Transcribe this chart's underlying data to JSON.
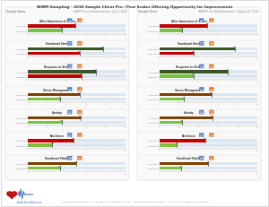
{
  "title": "WWM Sampling - 2018 Sample Client Pre / Post Scales Offering Opportunity for Improvement",
  "bg_color": "#ffffff",
  "left_panel": {
    "header_line1": "Sample Name",
    "header_line2": "WWM Stress Self-Assessment - July 3, 2018",
    "scales": [
      {
        "name": "Alloc Awareness of Stress",
        "label_pre": "Pre Score",
        "label_post": "Post Score",
        "badge_pre": "4.9",
        "badge_post": "3.5",
        "pre_val": 4.9,
        "post_val": 3.5,
        "max_val": 10,
        "bar_color_pre": "#c00000",
        "bar_color_post": "#7ac143",
        "tick_pre": 4.9,
        "tick_post": 3.5
      },
      {
        "name": "Emotional Stress",
        "label_pre": "Pre Score",
        "label_post": "Post Score",
        "badge_pre": "7.7",
        "badge_post": "5.3",
        "pre_val": 7.7,
        "post_val": 5.3,
        "max_val": 10,
        "bar_color_pre": "#375623",
        "bar_color_post": "#c00000",
        "tick_pre": 7.7,
        "tick_post": 5.3
      },
      {
        "name": "Response to Stress",
        "label_pre": "Pre Score",
        "label_post": "Post Score",
        "badge_pre": "7.0",
        "badge_post": "5.5",
        "pre_val": 7.0,
        "post_val": 5.5,
        "max_val": 10,
        "bar_color_pre": "#375623",
        "bar_color_post": "#c00000",
        "tick_pre": 7.0,
        "tick_post": 5.5
      },
      {
        "name": "Stress Management",
        "label_pre": "Pre Score",
        "label_post": "Post Score",
        "badge_pre": "5.3",
        "badge_post": "3.3",
        "pre_val": 5.3,
        "post_val": 3.3,
        "max_val": 10,
        "bar_color_pre": "#7b3f00",
        "bar_color_post": "#7ac143",
        "tick_pre": 5.3,
        "tick_post": 3.3
      },
      {
        "name": "Anxiety",
        "label_pre": "Pre Score",
        "label_post": "Post Score",
        "badge_pre": "5.4",
        "badge_post": "3.5",
        "pre_val": 5.4,
        "post_val": 3.5,
        "max_val": 10,
        "bar_color_pre": "#7b3f00",
        "bar_color_post": "#7ac143",
        "tick_pre": 5.4,
        "tick_post": 3.5
      },
      {
        "name": "Resilience",
        "label_pre": "Pre Score",
        "label_post": "Post Score",
        "badge_pre": "4.7",
        "badge_post": "2.5",
        "pre_val": 4.7,
        "post_val": 2.5,
        "max_val": 10,
        "bar_color_pre": "#c00000",
        "bar_color_post": "#7ac143",
        "tick_pre": 4.7,
        "tick_post": 2.5
      },
      {
        "name": "Emotional Vitality",
        "label_pre": "Pre Score",
        "label_post": "Post Score",
        "badge_pre": "5.0",
        "badge_post": "3.3",
        "pre_val": 5.0,
        "post_val": 3.3,
        "max_val": 10,
        "bar_color_pre": "#7b3f00",
        "bar_color_post": "#7ac143",
        "tick_pre": 5.0,
        "tick_post": 3.3
      }
    ]
  },
  "right_panel": {
    "header_line1": "Sample Client",
    "header_line2": "WWM Stress Well-Assessment - August 20, 2018",
    "scales": [
      {
        "name": "Alloc Awareness of Stress",
        "label_pre": "Pre Score",
        "label_post": "Post Score",
        "badge_pre": "4.9",
        "badge_post": "2.3",
        "pre_val": 4.9,
        "post_val": 2.3,
        "max_val": 10,
        "bar_color_pre": "#c00000",
        "bar_color_post": "#7ac143",
        "tick_pre": 4.9,
        "tick_post": 2.3
      },
      {
        "name": "Emotional Stress",
        "label_pre": "Pre Score",
        "label_post": "Post Score",
        "badge_pre": "7.7",
        "badge_post": "3.5",
        "pre_val": 7.7,
        "post_val": 3.5,
        "max_val": 10,
        "bar_color_pre": "#375623",
        "bar_color_post": "#c00000",
        "tick_pre": 7.7,
        "tick_post": 3.5
      },
      {
        "name": "Response to Stress",
        "label_pre": "Pre Score",
        "label_post": "Post Score",
        "badge_pre": "7.0",
        "badge_post": "3.5",
        "pre_val": 7.0,
        "post_val": 3.5,
        "max_val": 10,
        "bar_color_pre": "#375623",
        "bar_color_post": "#7ac143",
        "tick_pre": 7.0,
        "tick_post": 3.5
      },
      {
        "name": "Stress Management",
        "label_pre": "Pre Score",
        "label_post": "Post Score",
        "badge_pre": "5.3",
        "badge_post": "2.5",
        "pre_val": 5.3,
        "post_val": 2.5,
        "max_val": 10,
        "bar_color_pre": "#7b3f00",
        "bar_color_post": "#7ac143",
        "tick_pre": 5.3,
        "tick_post": 2.5
      },
      {
        "name": "Anxiety",
        "label_pre": "Pre Score",
        "label_post": "Post Score",
        "badge_pre": "5.4",
        "badge_post": "2.3",
        "pre_val": 5.4,
        "post_val": 2.3,
        "max_val": 10,
        "bar_color_pre": "#7b3f00",
        "bar_color_post": "#7ac143",
        "tick_pre": 5.4,
        "tick_post": 2.3
      },
      {
        "name": "Resilience",
        "label_pre": "Pre Score",
        "label_post": "Post Score",
        "badge_pre": "4.7",
        "badge_post": "1.8",
        "pre_val": 4.7,
        "post_val": 1.8,
        "max_val": 10,
        "bar_color_pre": "#c00000",
        "bar_color_post": "#7ac143",
        "tick_pre": 4.7,
        "tick_post": 1.8
      },
      {
        "name": "Emotional Vitality",
        "label_pre": "Pre Score",
        "label_post": "Post Score",
        "badge_pre": "5.0",
        "badge_post": "2.2",
        "pre_val": 5.0,
        "post_val": 2.2,
        "max_val": 10,
        "bar_color_pre": "#7b3f00",
        "bar_color_post": "#7ac143",
        "tick_pre": 5.0,
        "tick_post": 2.2
      }
    ]
  },
  "footer_address": "Greg Rupple, MHCT, MH/SAC  •  P.O. Box 56820 St. Petersburg, FL 33762  •  gregrupple@buildresilience.com  •  727-478-2762  •  www.buildresilience.com",
  "badge_pre_color": "#4472c4",
  "badge_post_color": "#e26b0a",
  "track_color": "#dce6f1",
  "tick_color": "#aaaaaa",
  "separator_color": "#dddddd"
}
